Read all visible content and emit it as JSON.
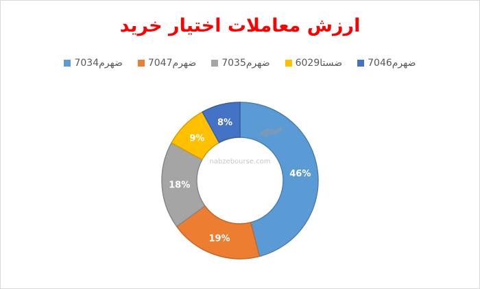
{
  "chart_data": {
    "type": "donut",
    "title": "ارزش معاملات اختیار خرید",
    "slices": [
      {
        "label": "ضهرم7034",
        "value": 46,
        "display": "46%",
        "color": "#5b9bd5"
      },
      {
        "label": "ضهرم7047",
        "value": 19,
        "display": "19%",
        "color": "#ed7d31"
      },
      {
        "label": "ضهرم7035",
        "value": 18,
        "display": "18%",
        "color": "#a5a5a5"
      },
      {
        "label": "ضستا6029",
        "value": 9,
        "display": "9%",
        "color": "#ffc000"
      },
      {
        "label": "ضهرم7046",
        "value": 8,
        "display": "8%",
        "color": "#4472c4"
      }
    ],
    "legend_position": "top",
    "start_angle_deg": 0,
    "direction": "clockwise"
  },
  "watermark": {
    "text": "nabzebourse.com"
  }
}
